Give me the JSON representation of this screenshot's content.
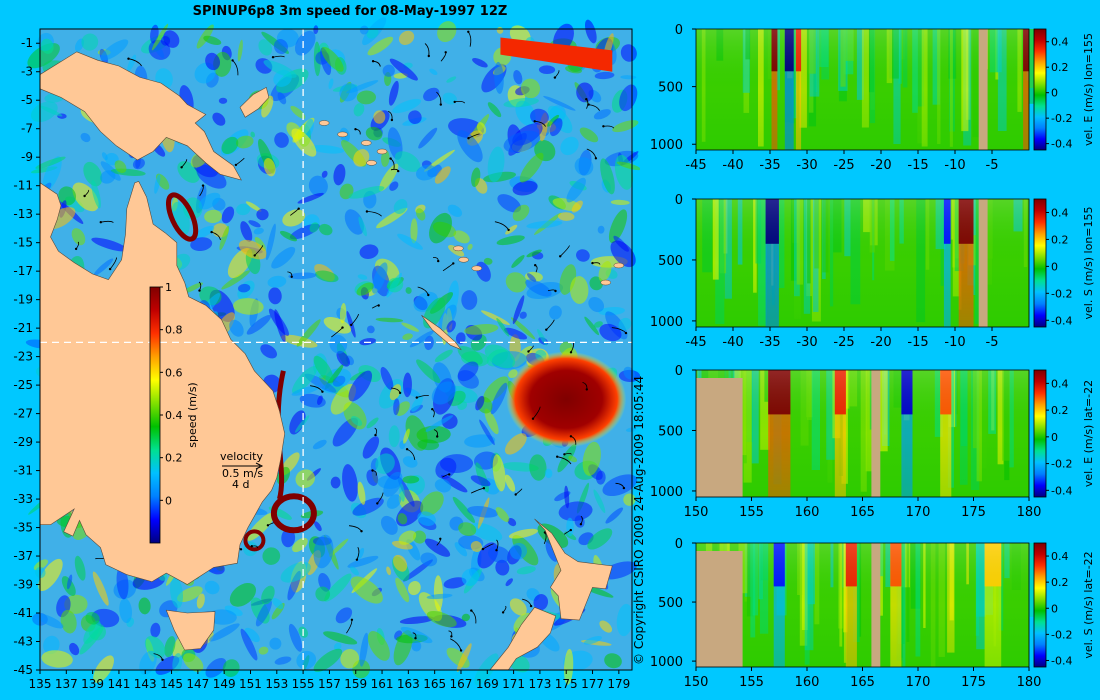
{
  "title": "SPINUP6p8 3m speed for 08-May-1997 12Z",
  "copyright": "© Copyright CSIRO 2009   24-Aug-2009 18:05:44",
  "colors": {
    "background": "#00c8ff",
    "land_map": "#ffc896",
    "land_section": "#c8a880",
    "cmap": [
      "#000080",
      "#0000ff",
      "#0080ff",
      "#00c0ff",
      "#00e090",
      "#00c000",
      "#80e000",
      "#ffff00",
      "#ffa000",
      "#ff3000",
      "#c00000",
      "#800000"
    ]
  },
  "chart_data": [
    {
      "type": "heatmap",
      "field": "3m speed",
      "xlim": [
        135,
        180
      ],
      "ylim": [
        -45,
        0
      ],
      "xticks": [
        "135",
        "137",
        "139",
        "141",
        "143",
        "145",
        "147",
        "149",
        "151",
        "153",
        "155",
        "157",
        "159",
        "161",
        "163",
        "165",
        "167",
        "169",
        "171",
        "173",
        "175",
        "177",
        "179"
      ],
      "yticks": [
        "-1",
        "-3",
        "-5",
        "-7",
        "-9",
        "-11",
        "-13",
        "-15",
        "-17",
        "-19",
        "-21",
        "-23",
        "-25",
        "-27",
        "-29",
        "-31",
        "-33",
        "-35",
        "-37",
        "-39",
        "-41",
        "-43",
        "-45"
      ],
      "section_lines": {
        "lon": 155,
        "lat": -22
      },
      "colorbar": {
        "label": "speed (m/s)",
        "range": [
          -0.2,
          1
        ],
        "ticks": [
          "1",
          "0.8",
          "0.6",
          "0.4",
          "0.2",
          "0"
        ]
      },
      "velocity_key": {
        "label": "velocity",
        "speed": "0.5 m/s",
        "duration": "4 d"
      },
      "features": [
        {
          "name": "warm eddy",
          "lon": 175,
          "lat": -26,
          "speed": 1.0
        },
        {
          "name": "East Australian Current",
          "lon": 154,
          "lat": -30,
          "speed": 1.0
        },
        {
          "name": "eddy ring",
          "lon": 155,
          "lat": -34,
          "speed": 1.0
        },
        {
          "name": "eddy ring",
          "lon": 152,
          "lat": -36,
          "speed": 1.0
        },
        {
          "name": "Gulf of Carpentaria eddy",
          "lon": 145,
          "lat": -13,
          "speed": 1.0
        },
        {
          "name": "equatorial jet",
          "lon": 170,
          "lat": -1,
          "speed": 0.8
        }
      ]
    },
    {
      "type": "heatmap",
      "ylabel": "vel. E (m/s) lon=155",
      "xlim": [
        -45,
        0
      ],
      "xticks": [
        "-45",
        "-40",
        "-35",
        "-30",
        "-25",
        "-20",
        "-15",
        "-10",
        "-5"
      ],
      "ylim": [
        1050,
        0
      ],
      "yticks": [
        "0",
        "500",
        "1000"
      ],
      "colorbar": {
        "range": [
          -0.45,
          0.5
        ],
        "ticks": [
          "0.4",
          "0.2",
          "0",
          "-0.2",
          "-0.4"
        ]
      },
      "land": [
        [
          -6.8,
          -5.6
        ]
      ],
      "features": [
        {
          "x": [
            -34.8,
            -34
          ],
          "value": 0.5
        },
        {
          "x": [
            -33,
            -31.8
          ],
          "value": -0.45
        },
        {
          "x": [
            -31.5,
            -30.8
          ],
          "value": 0.35
        },
        {
          "x": [
            -0.8,
            0
          ],
          "value": 0.5
        }
      ]
    },
    {
      "type": "heatmap",
      "ylabel": "vel. S (m/s) lon=155",
      "xlim": [
        -45,
        0
      ],
      "xticks": [
        "-45",
        "-40",
        "-35",
        "-30",
        "-25",
        "-20",
        "-15",
        "-10",
        "-5"
      ],
      "ylim": [
        1050,
        0
      ],
      "yticks": [
        "0",
        "500",
        "1000"
      ],
      "colorbar": {
        "range": [
          -0.45,
          0.5
        ],
        "ticks": [
          "0.4",
          "0.2",
          "0",
          "-0.2",
          "-0.4"
        ]
      },
      "land": [
        [
          -6.8,
          -5.6
        ]
      ],
      "features": [
        {
          "x": [
            -35.6,
            -33.8
          ],
          "value": -0.45
        },
        {
          "x": [
            -11.5,
            -10.6
          ],
          "value": -0.35
        },
        {
          "x": [
            -9.5,
            -7.5
          ],
          "value": 0.5
        }
      ]
    },
    {
      "type": "heatmap",
      "ylabel": "vel. E (m/s) lat=-22",
      "xlim": [
        150,
        180
      ],
      "xticks": [
        "150",
        "155",
        "160",
        "165",
        "170",
        "175",
        "180"
      ],
      "ylim": [
        1050,
        0
      ],
      "yticks": [
        "0",
        "500",
        "1000"
      ],
      "colorbar": {
        "range": [
          -0.45,
          0.5
        ],
        "ticks": [
          "0.4",
          "0.2",
          "0",
          "-0.2",
          "-0.4"
        ]
      },
      "land": [
        [
          150,
          154.2
        ],
        [
          165.8,
          166.6
        ]
      ],
      "features": [
        {
          "x": [
            156.5,
            158.5
          ],
          "value": 0.5
        },
        {
          "x": [
            162.5,
            163.5
          ],
          "value": 0.35
        },
        {
          "x": [
            168.5,
            169.5
          ],
          "value": -0.4
        },
        {
          "x": [
            172,
            173
          ],
          "value": 0.3
        }
      ]
    },
    {
      "type": "heatmap",
      "ylabel": "vel. S (m/s) lat=-22",
      "xlim": [
        150,
        180
      ],
      "xticks": [
        "150",
        "155",
        "160",
        "165",
        "170",
        "175",
        "180"
      ],
      "ylim": [
        1050,
        0
      ],
      "yticks": [
        "0",
        "500",
        "1000"
      ],
      "colorbar": {
        "range": [
          -0.45,
          0.5
        ],
        "ticks": [
          "0.4",
          "0.2",
          "0",
          "-0.2",
          "-0.4"
        ]
      },
      "land": [
        [
          150,
          154.2
        ],
        [
          165.8,
          166.6
        ]
      ],
      "features": [
        {
          "x": [
            157,
            158
          ],
          "value": -0.35
        },
        {
          "x": [
            163.5,
            164.5
          ],
          "value": 0.35
        },
        {
          "x": [
            167.5,
            168.5
          ],
          "value": 0.3
        },
        {
          "x": [
            176,
            177.5
          ],
          "value": 0.2
        }
      ]
    }
  ]
}
